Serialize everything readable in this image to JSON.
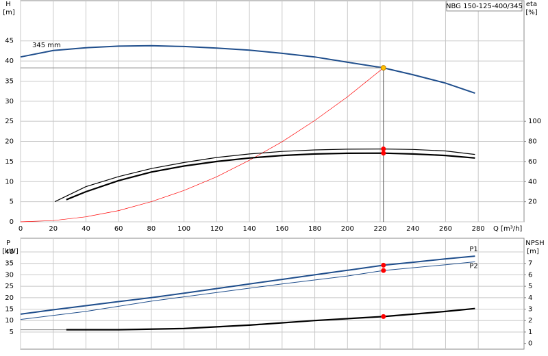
{
  "chart_data": [
    {
      "type": "line",
      "title": "NBG 150-125-400/345",
      "x_label": "Q [m³/h]",
      "y_label": "H",
      "y_unit": "[m]",
      "y2_label": "eta",
      "y2_unit": "[%]",
      "xlim": [
        0,
        308
      ],
      "xticks": [
        0,
        20,
        40,
        60,
        80,
        100,
        120,
        140,
        160,
        180,
        200,
        220,
        240,
        260,
        280
      ],
      "ylim": [
        0,
        55
      ],
      "yticks": [
        0,
        5,
        10,
        15,
        20,
        25,
        30,
        35,
        40,
        45
      ],
      "y2lim": [
        0,
        220
      ],
      "y2ticks": [
        20,
        40,
        60,
        80,
        100
      ],
      "grid": true,
      "duty_q": 222,
      "series": [
        {
          "name": "345 mm",
          "color": "#1f4e8c",
          "marker_color": "#ffc000",
          "x": [
            0,
            20,
            40,
            60,
            80,
            100,
            120,
            140,
            160,
            180,
            200,
            222,
            240,
            260,
            278
          ],
          "values": [
            41,
            42.6,
            43.3,
            43.7,
            43.8,
            43.6,
            43.2,
            42.7,
            41.9,
            41,
            39.7,
            38.3,
            36.6,
            34.5,
            32
          ]
        },
        {
          "color": "#ff0000",
          "x": [
            0,
            20,
            40,
            60,
            80,
            100,
            120,
            140,
            160,
            180,
            200,
            222
          ],
          "values": [
            0,
            0.3,
            1.25,
            2.8,
            5,
            7.8,
            11.2,
            15.3,
            19.9,
            25.2,
            31.1,
            38.3
          ]
        },
        {
          "color": "#000000",
          "axis": "y2",
          "marker_color": "#ff0000",
          "x": [
            21,
            40,
            60,
            80,
            100,
            120,
            140,
            160,
            180,
            200,
            222,
            240,
            260,
            278
          ],
          "values": [
            20,
            35,
            45,
            53,
            59,
            64,
            67.5,
            70,
            71.5,
            72.3,
            72.5,
            72,
            70.5,
            67
          ]
        },
        {
          "color": "#000000",
          "axis": "y2",
          "marker_color": "#ff0000",
          "x": [
            28,
            40,
            60,
            80,
            100,
            120,
            140,
            160,
            180,
            200,
            222,
            240,
            260,
            278
          ],
          "values": [
            22,
            30,
            41,
            49.5,
            55.5,
            60,
            63.5,
            66,
            67.5,
            68.2,
            68.3,
            67.5,
            66,
            63.5
          ]
        }
      ]
    },
    {
      "type": "line",
      "y_label": "P",
      "y_unit": "[kW]",
      "y2_label": "NPSH",
      "y2_unit": "[m]",
      "xlim": [
        0,
        308
      ],
      "xticks": [
        0,
        20,
        40,
        60,
        80,
        100,
        120,
        140,
        160,
        180,
        200,
        220,
        240,
        260,
        280
      ],
      "ylim": [
        -2.5,
        46
      ],
      "yticks": [
        5,
        10,
        15,
        20,
        25,
        30,
        35,
        40
      ],
      "y2lim": [
        -0.5,
        9.2
      ],
      "y2ticks": [
        0,
        1,
        2,
        3,
        4,
        5,
        6,
        7
      ],
      "grid": true,
      "duty_q": 222,
      "series": [
        {
          "name": "P1",
          "color": "#1f4e8c",
          "marker_color": "#ff0000",
          "x": [
            0,
            20,
            40,
            60,
            80,
            100,
            120,
            140,
            160,
            180,
            200,
            222,
            240,
            260,
            278
          ],
          "values": [
            12.8,
            14.7,
            16.5,
            18.3,
            20,
            22,
            24,
            26,
            28,
            30,
            32,
            34.2,
            35.5,
            37,
            38.2
          ]
        },
        {
          "name": "P2",
          "color": "#1f4e8c",
          "marker_color": "#ff0000",
          "x": [
            0,
            40,
            80,
            120,
            160,
            200,
            222,
            260,
            278
          ],
          "values": [
            10.5,
            14,
            18.5,
            22.3,
            26,
            29.5,
            31.9,
            34.4,
            35.7
          ]
        },
        {
          "color": "#000000",
          "axis": "y2",
          "marker_color": "#ff0000",
          "x": [
            28,
            60,
            100,
            140,
            180,
            222,
            260,
            278
          ],
          "values": [
            1.2,
            1.2,
            1.3,
            1.6,
            2.0,
            2.35,
            2.8,
            3.05
          ]
        }
      ]
    }
  ]
}
